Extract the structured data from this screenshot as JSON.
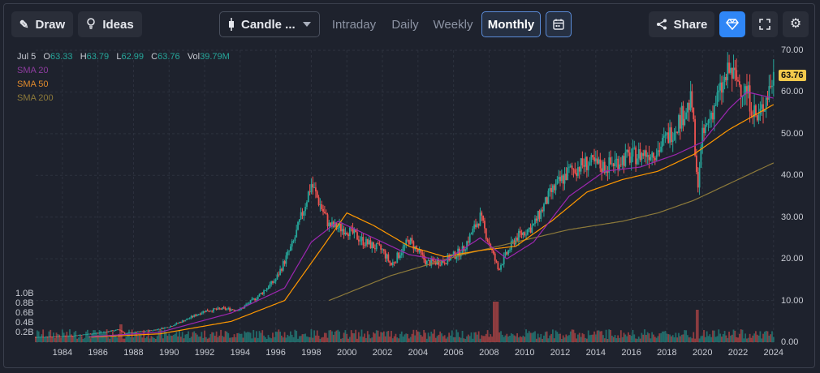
{
  "toolbar": {
    "draw_label": "Draw",
    "ideas_label": "Ideas",
    "chart_type_label": "Candle ...",
    "timeframes": [
      "Intraday",
      "Daily",
      "Weekly",
      "Monthly"
    ],
    "active_timeframe": "Monthly",
    "share_label": "Share",
    "icons": {
      "draw": "pencil-icon",
      "ideas": "lightbulb-icon",
      "chart_type": "candlestick-icon",
      "calendar": "calendar-icon",
      "share": "share-icon",
      "premium": "diamond-icon",
      "fullscreen": "fullscreen-icon",
      "settings": "gear-icon"
    }
  },
  "legend": {
    "date": "Jul 5",
    "open_label": "O",
    "open": "63.33",
    "high_label": "H",
    "high": "63.79",
    "low_label": "L",
    "low": "62.99",
    "close_label": "C",
    "close": "63.76",
    "vol_label": "Vol",
    "vol": "39.79M",
    "sma20": "SMA 20",
    "sma50": "SMA 50",
    "sma200": "SMA 200"
  },
  "last_price": "63.76",
  "colors": {
    "up": "#26a69a",
    "down": "#ef5350",
    "sma20": "#9c27b0",
    "sma50": "#ff9800",
    "sma200": "#8d7a3a",
    "accent": "#2962ff",
    "price_tag": "#f2c94c",
    "background": "#1e222d"
  },
  "chart_data": {
    "type": "candlestick",
    "timeframe": "monthly",
    "y_axis_ticks": [
      "70.00",
      "60.00",
      "50.00",
      "40.00",
      "30.00",
      "20.00",
      "10.00",
      "0.00"
    ],
    "y_axis_scale": "log",
    "ylim": [
      0,
      70
    ],
    "x_axis_ticks": [
      "1984",
      "1986",
      "1988",
      "1990",
      "1992",
      "1994",
      "1996",
      "1998",
      "2000",
      "2002",
      "2004",
      "2006",
      "2008",
      "2010",
      "2012",
      "2014",
      "2016",
      "2018",
      "2020",
      "2022",
      "2024"
    ],
    "xlim": [
      1983.0,
      2024.6
    ],
    "volume_axis_ticks": [
      "1.0B",
      "0.8B",
      "0.6B",
      "0.4B",
      "0.2B"
    ],
    "grid": true,
    "price_points": [
      [
        1983.0,
        1.2
      ],
      [
        1985.0,
        1.5
      ],
      [
        1986.5,
        2.2
      ],
      [
        1987.7,
        3.0
      ],
      [
        1988.0,
        2.1
      ],
      [
        1989.5,
        2.8
      ],
      [
        1990.5,
        3.7
      ],
      [
        1991.5,
        5.5
      ],
      [
        1992.5,
        7.5
      ],
      [
        1993.5,
        8.0
      ],
      [
        1994.5,
        7.8
      ],
      [
        1995.5,
        11.0
      ],
      [
        1996.5,
        15.0
      ],
      [
        1997.5,
        24.0
      ],
      [
        1998.5,
        38.0
      ],
      [
        1999.5,
        28.0
      ],
      [
        2000.5,
        27.0
      ],
      [
        2001.5,
        24.0
      ],
      [
        2002.5,
        22.0
      ],
      [
        2003.0,
        18.5
      ],
      [
        2004.0,
        24.5
      ],
      [
        2005.0,
        19.0
      ],
      [
        2006.0,
        19.5
      ],
      [
        2007.0,
        22.0
      ],
      [
        2008.0,
        30.0
      ],
      [
        2009.0,
        17.5
      ],
      [
        2010.0,
        25.0
      ],
      [
        2011.0,
        28.0
      ],
      [
        2012.0,
        36.0
      ],
      [
        2013.0,
        41.0
      ],
      [
        2014.0,
        43.0
      ],
      [
        2015.0,
        42.0
      ],
      [
        2016.0,
        44.0
      ],
      [
        2017.0,
        45.0
      ],
      [
        2018.0,
        46.0
      ],
      [
        2019.0,
        52.0
      ],
      [
        2019.9,
        58.0
      ],
      [
        2020.2,
        37.0
      ],
      [
        2020.5,
        49.0
      ],
      [
        2021.0,
        55.0
      ],
      [
        2022.0,
        65.0
      ],
      [
        2023.0,
        60.0
      ],
      [
        2023.6,
        53.0
      ],
      [
        2024.5,
        63.76
      ]
    ],
    "sma20_points": [
      [
        1986.0,
        1.3
      ],
      [
        1990.0,
        2.4
      ],
      [
        1994.0,
        7.0
      ],
      [
        1997.0,
        13.0
      ],
      [
        1998.5,
        24.0
      ],
      [
        2000.0,
        29.0
      ],
      [
        2002.0,
        25.0
      ],
      [
        2004.0,
        21.0
      ],
      [
        2006.0,
        19.5
      ],
      [
        2008.0,
        25.0
      ],
      [
        2009.5,
        20.0
      ],
      [
        2011.0,
        24.0
      ],
      [
        2013.0,
        35.0
      ],
      [
        2015.0,
        41.0
      ],
      [
        2017.0,
        42.0
      ],
      [
        2019.0,
        45.0
      ],
      [
        2020.5,
        48.0
      ],
      [
        2022.0,
        56.0
      ],
      [
        2023.0,
        60.0
      ],
      [
        2024.5,
        58.5
      ]
    ],
    "sma50_points": [
      [
        1986.0,
        1.2
      ],
      [
        1990.0,
        2.0
      ],
      [
        1994.0,
        5.0
      ],
      [
        1997.0,
        10.0
      ],
      [
        1999.0,
        22.0
      ],
      [
        2000.5,
        31.0
      ],
      [
        2002.0,
        28.0
      ],
      [
        2004.0,
        23.0
      ],
      [
        2006.0,
        20.5
      ],
      [
        2008.0,
        22.0
      ],
      [
        2010.0,
        23.0
      ],
      [
        2012.0,
        29.0
      ],
      [
        2014.0,
        36.0
      ],
      [
        2016.0,
        39.0
      ],
      [
        2018.0,
        41.0
      ],
      [
        2020.0,
        45.0
      ],
      [
        2022.0,
        51.0
      ],
      [
        2024.5,
        57.0
      ]
    ],
    "sma200_points": [
      [
        1999.5,
        10.0
      ],
      [
        2003.0,
        16.0
      ],
      [
        2007.0,
        21.0
      ],
      [
        2010.0,
        24.0
      ],
      [
        2013.0,
        27.0
      ],
      [
        2016.0,
        29.0
      ],
      [
        2018.0,
        31.0
      ],
      [
        2020.0,
        34.0
      ],
      [
        2022.0,
        38.0
      ],
      [
        2024.5,
        43.0
      ]
    ]
  }
}
